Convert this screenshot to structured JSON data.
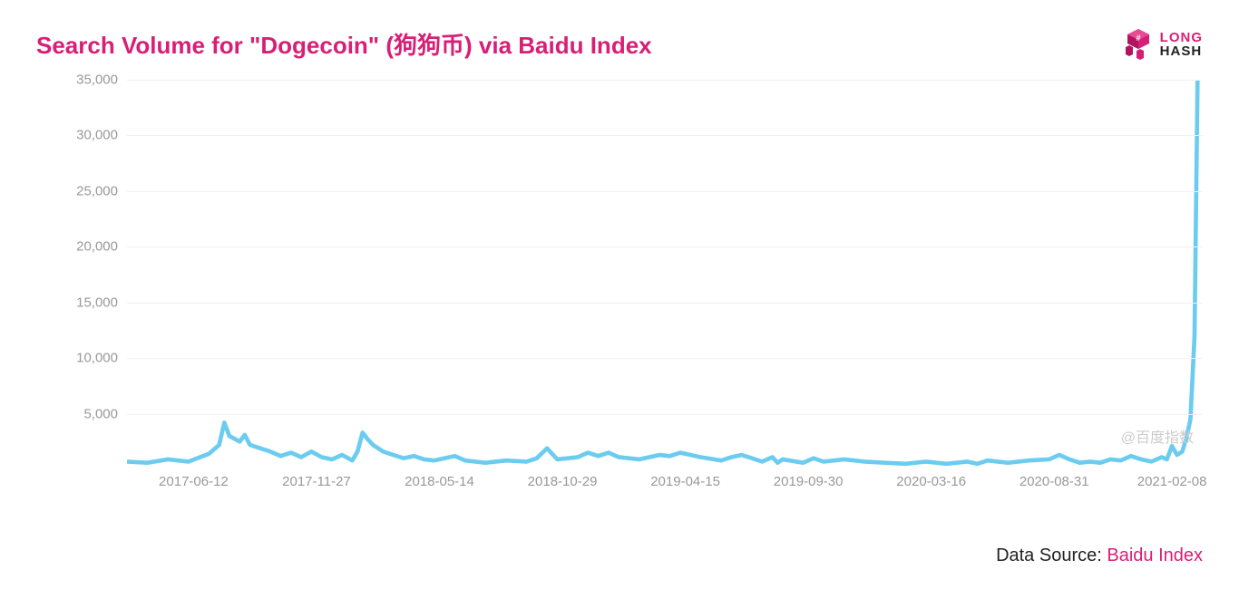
{
  "title": "Search Volume for \"Dogecoin\" (狗狗币) via Baidu Index",
  "logo": {
    "top": "LONG",
    "bottom": "HASH"
  },
  "footer": {
    "label": "Data Source: ",
    "source": "Baidu Index"
  },
  "watermark": "@百度指数",
  "chart": {
    "type": "line",
    "line_color": "#6bccf0",
    "line_width": 2,
    "background_color": "#ffffff",
    "grid_color": "#f0f0f0",
    "axis_label_color": "#999999",
    "axis_label_fontsize": 15,
    "ylim": [
      0,
      35000
    ],
    "yticks": [
      5000,
      10000,
      15000,
      20000,
      25000,
      30000,
      35000
    ],
    "ytick_labels": [
      "5,000",
      "10,000",
      "15,000",
      "20,000",
      "25,000",
      "30,000",
      "35,000"
    ],
    "xticks": [
      {
        "pos": 0.065,
        "label": "2017-06-12"
      },
      {
        "pos": 0.185,
        "label": "2017-11-27"
      },
      {
        "pos": 0.305,
        "label": "2018-05-14"
      },
      {
        "pos": 0.425,
        "label": "2018-10-29"
      },
      {
        "pos": 0.545,
        "label": "2019-04-15"
      },
      {
        "pos": 0.665,
        "label": "2019-09-30"
      },
      {
        "pos": 0.785,
        "label": "2020-03-16"
      },
      {
        "pos": 0.905,
        "label": "2020-08-31"
      },
      {
        "pos": 1.02,
        "label": "2021-02-08"
      }
    ],
    "series": [
      {
        "x": 0.0,
        "y": 700
      },
      {
        "x": 0.02,
        "y": 600
      },
      {
        "x": 0.04,
        "y": 900
      },
      {
        "x": 0.06,
        "y": 700
      },
      {
        "x": 0.08,
        "y": 1400
      },
      {
        "x": 0.09,
        "y": 2200
      },
      {
        "x": 0.095,
        "y": 4200
      },
      {
        "x": 0.1,
        "y": 3000
      },
      {
        "x": 0.11,
        "y": 2500
      },
      {
        "x": 0.115,
        "y": 3100
      },
      {
        "x": 0.12,
        "y": 2200
      },
      {
        "x": 0.13,
        "y": 1900
      },
      {
        "x": 0.14,
        "y": 1600
      },
      {
        "x": 0.15,
        "y": 1200
      },
      {
        "x": 0.16,
        "y": 1500
      },
      {
        "x": 0.17,
        "y": 1100
      },
      {
        "x": 0.18,
        "y": 1600
      },
      {
        "x": 0.19,
        "y": 1100
      },
      {
        "x": 0.2,
        "y": 900
      },
      {
        "x": 0.21,
        "y": 1300
      },
      {
        "x": 0.22,
        "y": 800
      },
      {
        "x": 0.225,
        "y": 1600
      },
      {
        "x": 0.23,
        "y": 3300
      },
      {
        "x": 0.235,
        "y": 2700
      },
      {
        "x": 0.24,
        "y": 2200
      },
      {
        "x": 0.25,
        "y": 1600
      },
      {
        "x": 0.26,
        "y": 1300
      },
      {
        "x": 0.27,
        "y": 1000
      },
      {
        "x": 0.28,
        "y": 1200
      },
      {
        "x": 0.29,
        "y": 900
      },
      {
        "x": 0.3,
        "y": 800
      },
      {
        "x": 0.32,
        "y": 1200
      },
      {
        "x": 0.33,
        "y": 800
      },
      {
        "x": 0.34,
        "y": 700
      },
      {
        "x": 0.35,
        "y": 600
      },
      {
        "x": 0.37,
        "y": 800
      },
      {
        "x": 0.39,
        "y": 700
      },
      {
        "x": 0.4,
        "y": 1000
      },
      {
        "x": 0.41,
        "y": 1900
      },
      {
        "x": 0.415,
        "y": 1400
      },
      {
        "x": 0.42,
        "y": 900
      },
      {
        "x": 0.44,
        "y": 1100
      },
      {
        "x": 0.45,
        "y": 1500
      },
      {
        "x": 0.46,
        "y": 1200
      },
      {
        "x": 0.47,
        "y": 1500
      },
      {
        "x": 0.48,
        "y": 1100
      },
      {
        "x": 0.5,
        "y": 900
      },
      {
        "x": 0.52,
        "y": 1300
      },
      {
        "x": 0.53,
        "y": 1200
      },
      {
        "x": 0.54,
        "y": 1500
      },
      {
        "x": 0.56,
        "y": 1100
      },
      {
        "x": 0.58,
        "y": 800
      },
      {
        "x": 0.59,
        "y": 1100
      },
      {
        "x": 0.6,
        "y": 1300
      },
      {
        "x": 0.61,
        "y": 1000
      },
      {
        "x": 0.62,
        "y": 700
      },
      {
        "x": 0.63,
        "y": 1100
      },
      {
        "x": 0.635,
        "y": 600
      },
      {
        "x": 0.64,
        "y": 900
      },
      {
        "x": 0.66,
        "y": 600
      },
      {
        "x": 0.67,
        "y": 1000
      },
      {
        "x": 0.68,
        "y": 700
      },
      {
        "x": 0.7,
        "y": 900
      },
      {
        "x": 0.72,
        "y": 700
      },
      {
        "x": 0.74,
        "y": 600
      },
      {
        "x": 0.76,
        "y": 500
      },
      {
        "x": 0.78,
        "y": 700
      },
      {
        "x": 0.8,
        "y": 500
      },
      {
        "x": 0.82,
        "y": 700
      },
      {
        "x": 0.83,
        "y": 500
      },
      {
        "x": 0.84,
        "y": 800
      },
      {
        "x": 0.86,
        "y": 600
      },
      {
        "x": 0.88,
        "y": 800
      },
      {
        "x": 0.9,
        "y": 900
      },
      {
        "x": 0.91,
        "y": 1300
      },
      {
        "x": 0.92,
        "y": 900
      },
      {
        "x": 0.93,
        "y": 600
      },
      {
        "x": 0.94,
        "y": 700
      },
      {
        "x": 0.95,
        "y": 600
      },
      {
        "x": 0.96,
        "y": 900
      },
      {
        "x": 0.97,
        "y": 800
      },
      {
        "x": 0.98,
        "y": 1200
      },
      {
        "x": 0.99,
        "y": 900
      },
      {
        "x": 1.0,
        "y": 700
      },
      {
        "x": 1.01,
        "y": 1100
      },
      {
        "x": 1.015,
        "y": 900
      },
      {
        "x": 1.02,
        "y": 2100
      },
      {
        "x": 1.025,
        "y": 1300
      },
      {
        "x": 1.03,
        "y": 1600
      },
      {
        "x": 1.034,
        "y": 2800
      },
      {
        "x": 1.038,
        "y": 4500
      },
      {
        "x": 1.042,
        "y": 12000
      },
      {
        "x": 1.045,
        "y": 35000
      }
    ]
  }
}
